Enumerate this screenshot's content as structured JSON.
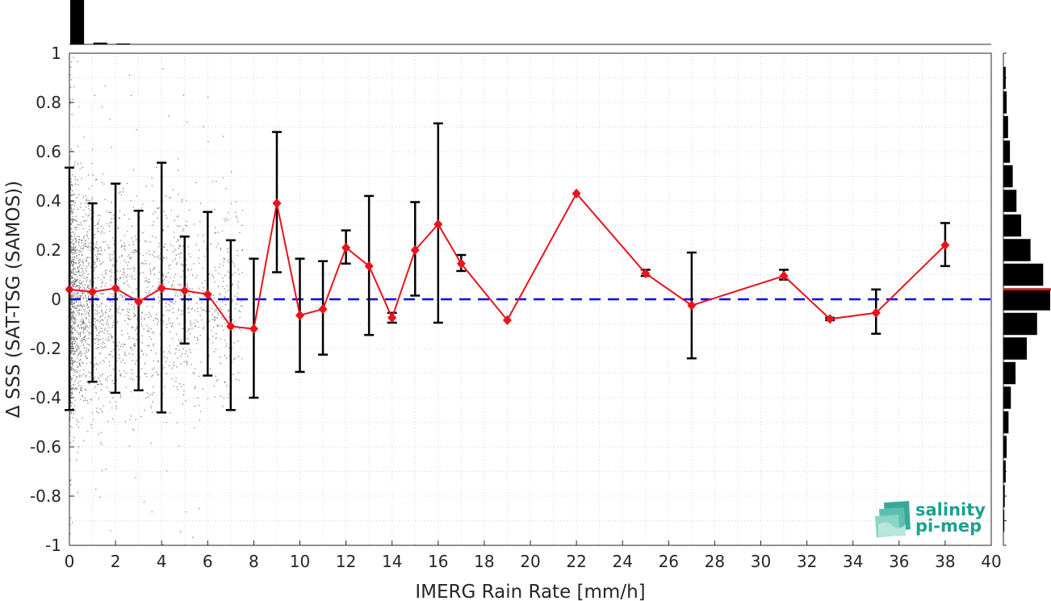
{
  "chart_data": {
    "type": "scatter",
    "xlabel": "IMERG Rain Rate [mm/h]",
    "ylabel": "Δ SSS (SAT-TSG (SAMOS))",
    "xlim": [
      0,
      40
    ],
    "ylim": [
      -1,
      1
    ],
    "x_ticks": [
      "0",
      "2",
      "4",
      "6",
      "8",
      "10",
      "12",
      "14",
      "16",
      "18",
      "20",
      "22",
      "24",
      "26",
      "28",
      "30",
      "32",
      "34",
      "36",
      "38",
      "40"
    ],
    "y_ticks": [
      "1",
      "0.8",
      "0.6",
      "0.4",
      "0.2",
      "0",
      "-0.2",
      "-0.4",
      "-0.6",
      "-0.8",
      "-1"
    ],
    "grid": true,
    "reference_line": {
      "y": 0,
      "color": "#0000ff",
      "style": "dashed"
    },
    "series": [
      {
        "color": "#e8141b",
        "marker": "diamond",
        "x": [
          0,
          1,
          2,
          3,
          4,
          5,
          6,
          7,
          8,
          9,
          10,
          11,
          12,
          13,
          14,
          15,
          16,
          17,
          19,
          22,
          25,
          27,
          31,
          33,
          35,
          38
        ],
        "y": [
          0.04,
          0.03,
          0.045,
          -0.01,
          0.045,
          0.035,
          0.02,
          -0.11,
          -0.12,
          0.39,
          -0.065,
          -0.04,
          0.21,
          0.135,
          -0.075,
          0.2,
          0.305,
          0.145,
          -0.085,
          0.43,
          0.105,
          -0.025,
          0.095,
          -0.08,
          -0.055,
          0.22
        ],
        "err_low": [
          -0.45,
          -0.335,
          -0.38,
          -0.37,
          -0.46,
          -0.18,
          -0.31,
          -0.45,
          -0.4,
          0.11,
          -0.295,
          -0.225,
          0.145,
          -0.145,
          -0.095,
          0.015,
          -0.095,
          0.115,
          -0.085,
          0.43,
          0.095,
          -0.24,
          0.08,
          -0.085,
          -0.14,
          0.135
        ],
        "err_high": [
          0.535,
          0.39,
          0.47,
          0.36,
          0.555,
          0.255,
          0.355,
          0.24,
          0.165,
          0.68,
          0.165,
          0.155,
          0.28,
          0.42,
          -0.055,
          0.395,
          0.715,
          0.18,
          -0.085,
          0.43,
          0.12,
          0.19,
          0.12,
          -0.075,
          0.04,
          0.31
        ]
      }
    ],
    "scatter_cloud": {
      "color": "#808080",
      "x_range": [
        0,
        8
      ],
      "y_range": [
        -1,
        1
      ],
      "density": "dense near x=0, decreasing with x"
    },
    "top_histogram": {
      "bins_x": [
        0,
        1,
        2
      ],
      "relative_heights": [
        1.0,
        0.04,
        0.02
      ],
      "color": "#000000"
    },
    "right_histogram": {
      "bins_y": [
        0.9,
        0.8,
        0.7,
        0.6,
        0.5,
        0.4,
        0.3,
        0.2,
        0.1,
        0.0,
        -0.1,
        -0.2,
        -0.3,
        -0.4,
        -0.5,
        -0.6,
        -0.7,
        -0.8,
        -0.9
      ],
      "relative_counts": [
        0.05,
        0.07,
        0.1,
        0.14,
        0.2,
        0.28,
        0.38,
        0.58,
        0.85,
        1.0,
        0.72,
        0.5,
        0.26,
        0.16,
        0.11,
        0.07,
        0.05,
        0.03,
        0.02
      ],
      "mean_line_y": 0.04,
      "mean_color": "#e8141b"
    },
    "logo": {
      "line1": "salinity",
      "line2": "pi-mep",
      "color": "#1aa190"
    }
  }
}
